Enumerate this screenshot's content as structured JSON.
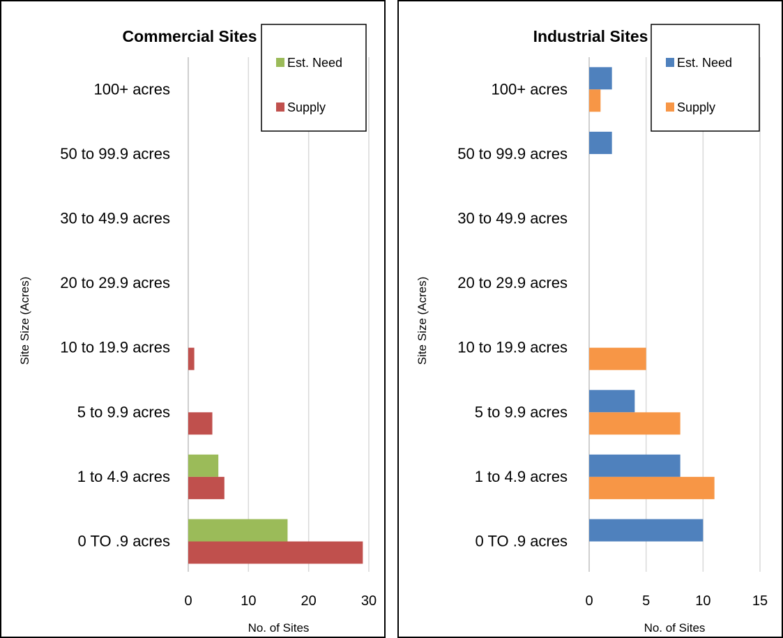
{
  "chart_data": [
    {
      "type": "bar",
      "orientation": "horizontal",
      "title": "Commercial Sites",
      "xlabel": "No. of Sites",
      "ylabel": "Site Size (Acres)",
      "xlim": [
        0,
        30
      ],
      "xticks": [
        0,
        10,
        20,
        30
      ],
      "grid": true,
      "legend_position": "top-right",
      "categories": [
        "0 TO .9 acres",
        "1 to 4.9 acres",
        "5 to 9.9 acres",
        "10 to 19.9 acres",
        "20 to 29.9 acres",
        "30 to 49.9 acres",
        "50 to 99.9 acres",
        "100+ acres"
      ],
      "series": [
        {
          "name": "Est. Need",
          "color": "#9bbb59",
          "values": [
            16.5,
            5,
            0,
            0,
            0,
            0,
            0,
            0
          ]
        },
        {
          "name": "Supply",
          "color": "#c0504d",
          "values": [
            29,
            6,
            4,
            1,
            0,
            0,
            0,
            0
          ]
        }
      ]
    },
    {
      "type": "bar",
      "orientation": "horizontal",
      "title": "Industrial Sites",
      "xlabel": "No. of Sites",
      "ylabel": "Site Size (Acres)",
      "xlim": [
        0,
        15
      ],
      "xticks": [
        0,
        5,
        10,
        15
      ],
      "grid": true,
      "legend_position": "top-right",
      "categories": [
        "0 TO .9 acres",
        "1 to 4.9 acres",
        "5 to 9.9 acres",
        "10 to 19.9 acres",
        "20 to 29.9 acres",
        "30 to 49.9 acres",
        "50 to 99.9 acres",
        "100+ acres"
      ],
      "series": [
        {
          "name": "Est. Need",
          "color": "#4f81bd",
          "values": [
            10,
            8,
            4,
            0,
            0,
            0,
            2,
            2
          ]
        },
        {
          "name": "Supply",
          "color": "#f79646",
          "values": [
            0,
            11,
            8,
            5,
            0,
            0,
            0,
            1
          ]
        }
      ]
    }
  ]
}
